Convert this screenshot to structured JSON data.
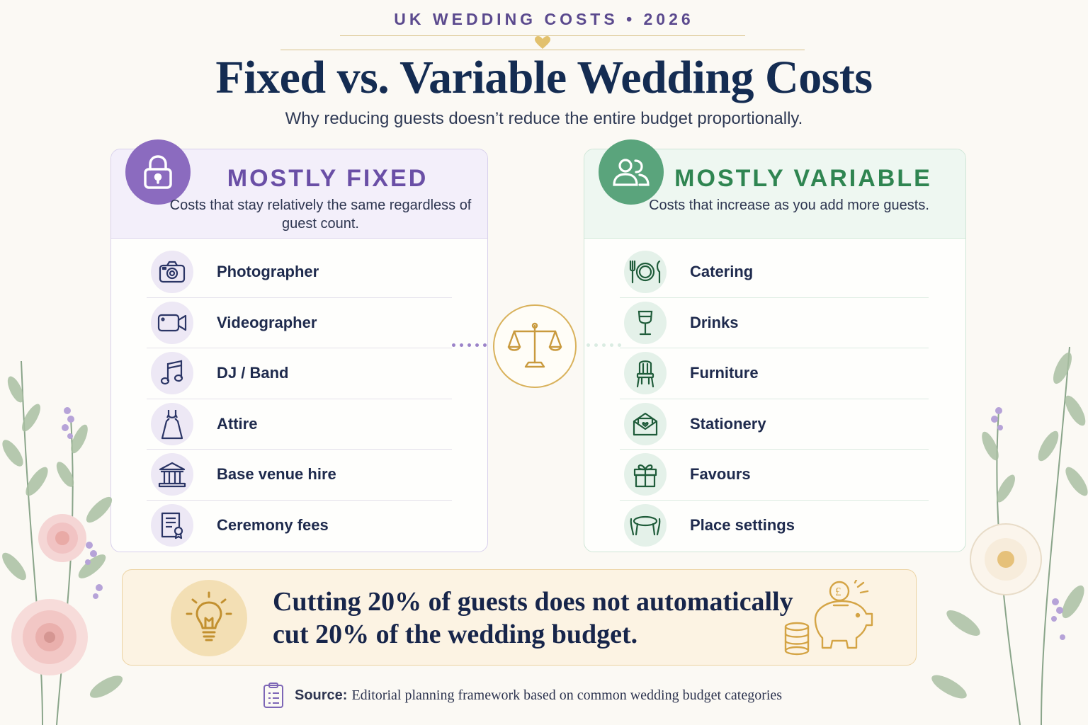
{
  "header": {
    "kicker": "UK WEDDING COSTS • 2026",
    "title": "Fixed vs. Variable Wedding Costs",
    "subtitle": "Why reducing guests doesn’t reduce the entire budget proportionally."
  },
  "fixed_panel": {
    "title": "MOSTLY FIXED",
    "description": "Costs that stay relatively the same regardless of guest count.",
    "icon": "lock-icon",
    "items": [
      {
        "label": "Photographer",
        "icon": "camera-icon"
      },
      {
        "label": "Videographer",
        "icon": "video-camera-icon"
      },
      {
        "label": "DJ / Band",
        "icon": "music-note-icon"
      },
      {
        "label": "Attire",
        "icon": "dress-icon"
      },
      {
        "label": "Base venue hire",
        "icon": "venue-building-icon"
      },
      {
        "label": "Ceremony fees",
        "icon": "certificate-icon"
      }
    ]
  },
  "variable_panel": {
    "title": "MOSTLY VARIABLE",
    "description": "Costs that increase as you add more guests.",
    "icon": "people-icon",
    "items": [
      {
        "label": "Catering",
        "icon": "plate-cutlery-icon"
      },
      {
        "label": "Drinks",
        "icon": "wine-glass-icon"
      },
      {
        "label": "Furniture",
        "icon": "chair-icon"
      },
      {
        "label": "Stationery",
        "icon": "envelope-icon"
      },
      {
        "label": "Favours",
        "icon": "gift-icon"
      },
      {
        "label": "Place settings",
        "icon": "table-icon"
      }
    ]
  },
  "center_icon": "balance-scale-icon",
  "callout": {
    "text": "Cutting 20% of guests does not automatically cut 20% of the wedding budget.",
    "icon": "lightbulb-icon",
    "illustration": "piggy-bank-coins-icon"
  },
  "source": {
    "label": "Source:",
    "text": "Editorial planning framework based on common wedding budget categories",
    "icon": "clipboard-icon"
  },
  "colors": {
    "background": "#fbf9f4",
    "title": "#142c52",
    "fixed_accent": "#8b6bbf",
    "variable_accent": "#5aa47c",
    "gold": "#d9b25c"
  }
}
